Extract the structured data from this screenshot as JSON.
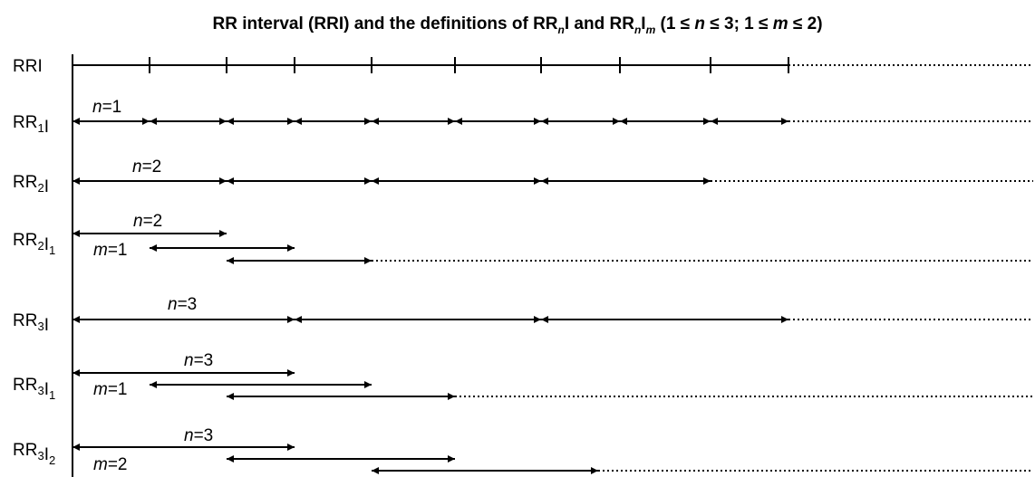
{
  "title": {
    "prefix": "RR interval (RRI) and the definitions of RR",
    "sub1": "n",
    "mid": "I and RR",
    "sub2": "n",
    "mid2": "I",
    "sub3": "m",
    "suffix_open": " (1 ≤ ",
    "var_n": "n",
    "suffix_mid": " ≤ 3; 1 ≤ ",
    "var_m": "m",
    "suffix_close": " ≤ 2)"
  },
  "rows": [
    {
      "id": "rri",
      "label_main": "RRI",
      "label_sub1": "",
      "label_mid": "",
      "label_sub2": ""
    },
    {
      "id": "rr1i",
      "label_main": "RR",
      "label_sub1": "1",
      "label_mid": "I",
      "label_sub2": ""
    },
    {
      "id": "rr2i",
      "label_main": "RR",
      "label_sub1": "2",
      "label_mid": "I",
      "label_sub2": ""
    },
    {
      "id": "rr2i1",
      "label_main": "RR",
      "label_sub1": "2",
      "label_mid": "I",
      "label_sub2": "1"
    },
    {
      "id": "rr3i",
      "label_main": "RR",
      "label_sub1": "3",
      "label_mid": "I",
      "label_sub2": ""
    },
    {
      "id": "rr3i1",
      "label_main": "RR",
      "label_sub1": "3",
      "label_mid": "I",
      "label_sub2": "1"
    },
    {
      "id": "rr3i2",
      "label_main": "RR",
      "label_sub1": "3",
      "label_mid": "I",
      "label_sub2": "2"
    }
  ],
  "annotations": [
    {
      "row": "rr1i",
      "var": "n",
      "eq": "=1"
    },
    {
      "row": "rr2i",
      "var": "n",
      "eq": "=2"
    },
    {
      "row": "rr2i1",
      "var": "n",
      "eq": "=2"
    },
    {
      "row": "rr2i1",
      "var": "m",
      "eq": "=1"
    },
    {
      "row": "rr3i",
      "var": "n",
      "eq": "=3"
    },
    {
      "row": "rr3i1",
      "var": "n",
      "eq": "=3"
    },
    {
      "row": "rr3i1",
      "var": "m",
      "eq": "=1"
    },
    {
      "row": "rr3i2",
      "var": "n",
      "eq": "=3"
    },
    {
      "row": "rr3i2",
      "var": "m",
      "eq": "=2"
    }
  ]
}
